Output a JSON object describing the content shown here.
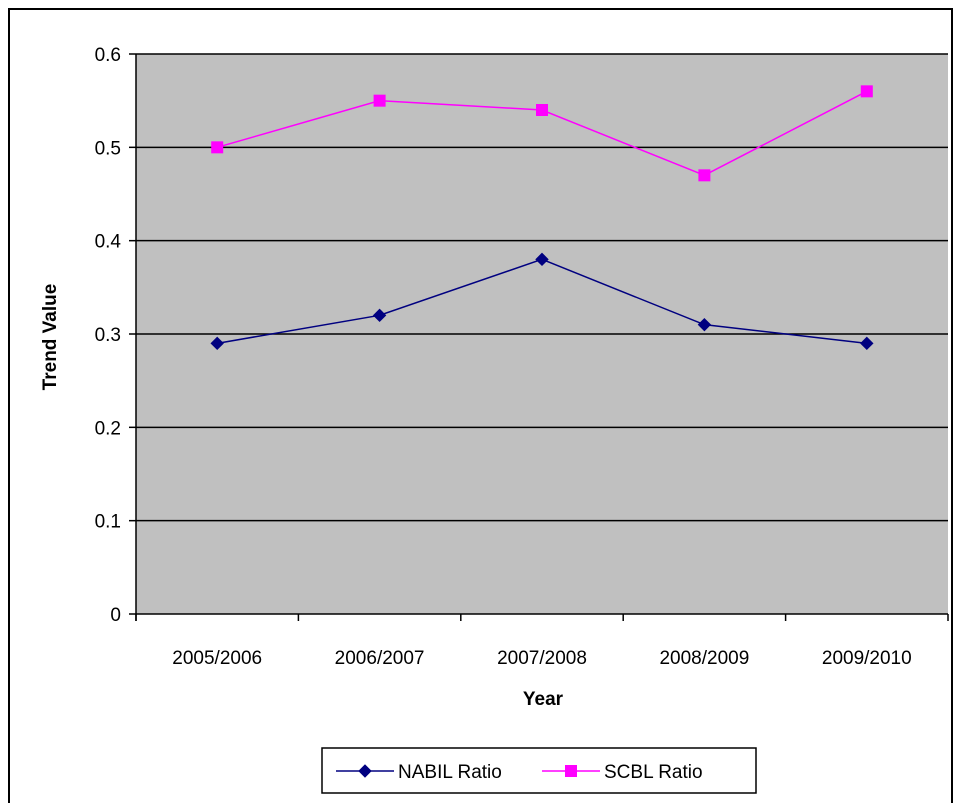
{
  "chart_data": {
    "type": "line",
    "title": "",
    "xlabel": "Year",
    "ylabel": "Trend Value",
    "categories": [
      "2005/2006",
      "2006/2007",
      "2007/2008",
      "2008/2009",
      "2009/2010"
    ],
    "ylim": [
      0,
      0.6
    ],
    "yticks": [
      "0",
      "0.1",
      "0.2",
      "0.3",
      "0.4",
      "0.5",
      "0.6"
    ],
    "grid": true,
    "legend_position": "bottom",
    "plot_background": "#c0c0c0",
    "series": [
      {
        "name": "NABIL Ratio",
        "values": [
          0.29,
          0.32,
          0.38,
          0.31,
          0.29
        ],
        "color": "#000080",
        "marker": "diamond"
      },
      {
        "name": "SCBL Ratio",
        "values": [
          0.5,
          0.55,
          0.54,
          0.47,
          0.56
        ],
        "color": "#ff00ff",
        "marker": "square"
      }
    ]
  }
}
